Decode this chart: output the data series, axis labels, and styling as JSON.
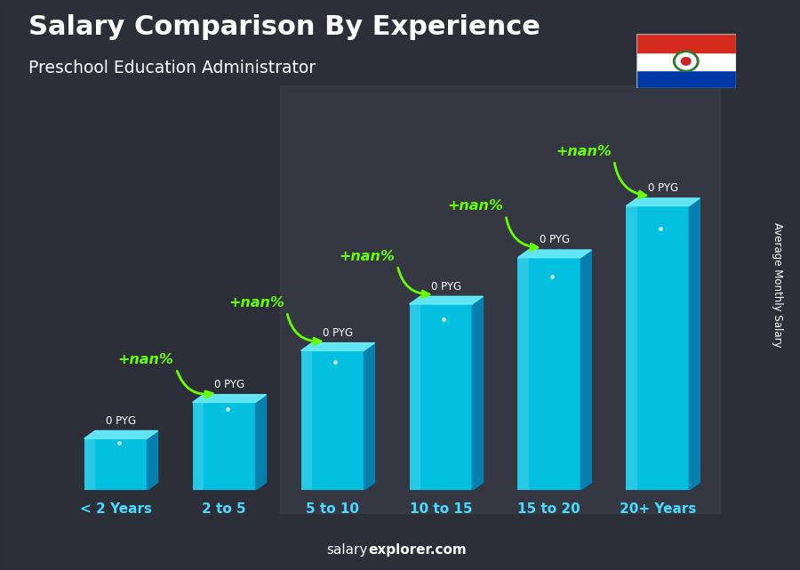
{
  "title": "Salary Comparison By Experience",
  "subtitle": "Preschool Education Administrator",
  "categories": [
    "< 2 Years",
    "2 to 5",
    "5 to 10",
    "10 to 15",
    "15 to 20",
    "20+ Years"
  ],
  "values": [
    1.0,
    1.7,
    2.7,
    3.6,
    4.5,
    5.5
  ],
  "bar_label": "0 PYG",
  "pct_label": "+nan%",
  "bar_face_color": "#00ccee",
  "bar_side_color": "#0088bb",
  "bar_top_color": "#66eeff",
  "bar_highlight_color": "#aaf8ff",
  "text_color_white": "#ffffff",
  "text_color_cyan": "#44ddff",
  "text_color_green": "#66ff00",
  "bg_color": "#3a3a4a",
  "ylabel": "Average Monthly Salary",
  "footer_normal": "salary",
  "footer_bold": "explorer.com",
  "ylim": [
    0,
    7.5
  ],
  "xlim": [
    -0.55,
    5.65
  ],
  "bar_width": 0.58,
  "depth_x": 0.1,
  "depth_y": 0.15,
  "arrow_arc_color": "#66ff00",
  "flag_colors": [
    "#d52b1e",
    "#ffffff",
    "#0038a8"
  ]
}
